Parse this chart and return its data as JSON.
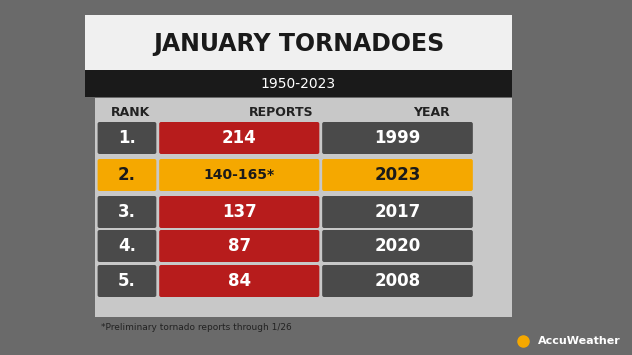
{
  "title": "JANUARY TORNADOES",
  "subtitle": "1950-2023",
  "ranks": [
    "1.",
    "2.",
    "3.",
    "4.",
    "5."
  ],
  "reports": [
    "214",
    "140-165*",
    "137",
    "87",
    "84"
  ],
  "years": [
    "1999",
    "2023",
    "2017",
    "2020",
    "2008"
  ],
  "footnote": "*Preliminary tornado reports through 1/26",
  "rank_bg": [
    "#4a4a4a",
    "#f5a800",
    "#4a4a4a",
    "#4a4a4a",
    "#4a4a4a"
  ],
  "report_bg": [
    "#b71c1c",
    "#f5a800",
    "#b71c1c",
    "#b71c1c",
    "#b71c1c"
  ],
  "year_bg": [
    "#4a4a4a",
    "#f5a800",
    "#4a4a4a",
    "#4a4a4a",
    "#4a4a4a"
  ],
  "title_bg": "#f0f0f0",
  "subtitle_bg": "#1a1a1a",
  "table_bg": "#c8c8c8",
  "accuweather_orange": "#f5a800",
  "col_headers": [
    "RANK",
    "REPORTS",
    "YEAR"
  ],
  "bg_color": "#6a6a6a",
  "rank_text_color": [
    "white",
    "#1a1a1a",
    "white",
    "white",
    "white"
  ],
  "year_text_color": [
    "white",
    "#1a1a1a",
    "white",
    "white",
    "white"
  ],
  "report_text_color": [
    "white",
    "#1a1a1a",
    "white",
    "white",
    "white"
  ]
}
